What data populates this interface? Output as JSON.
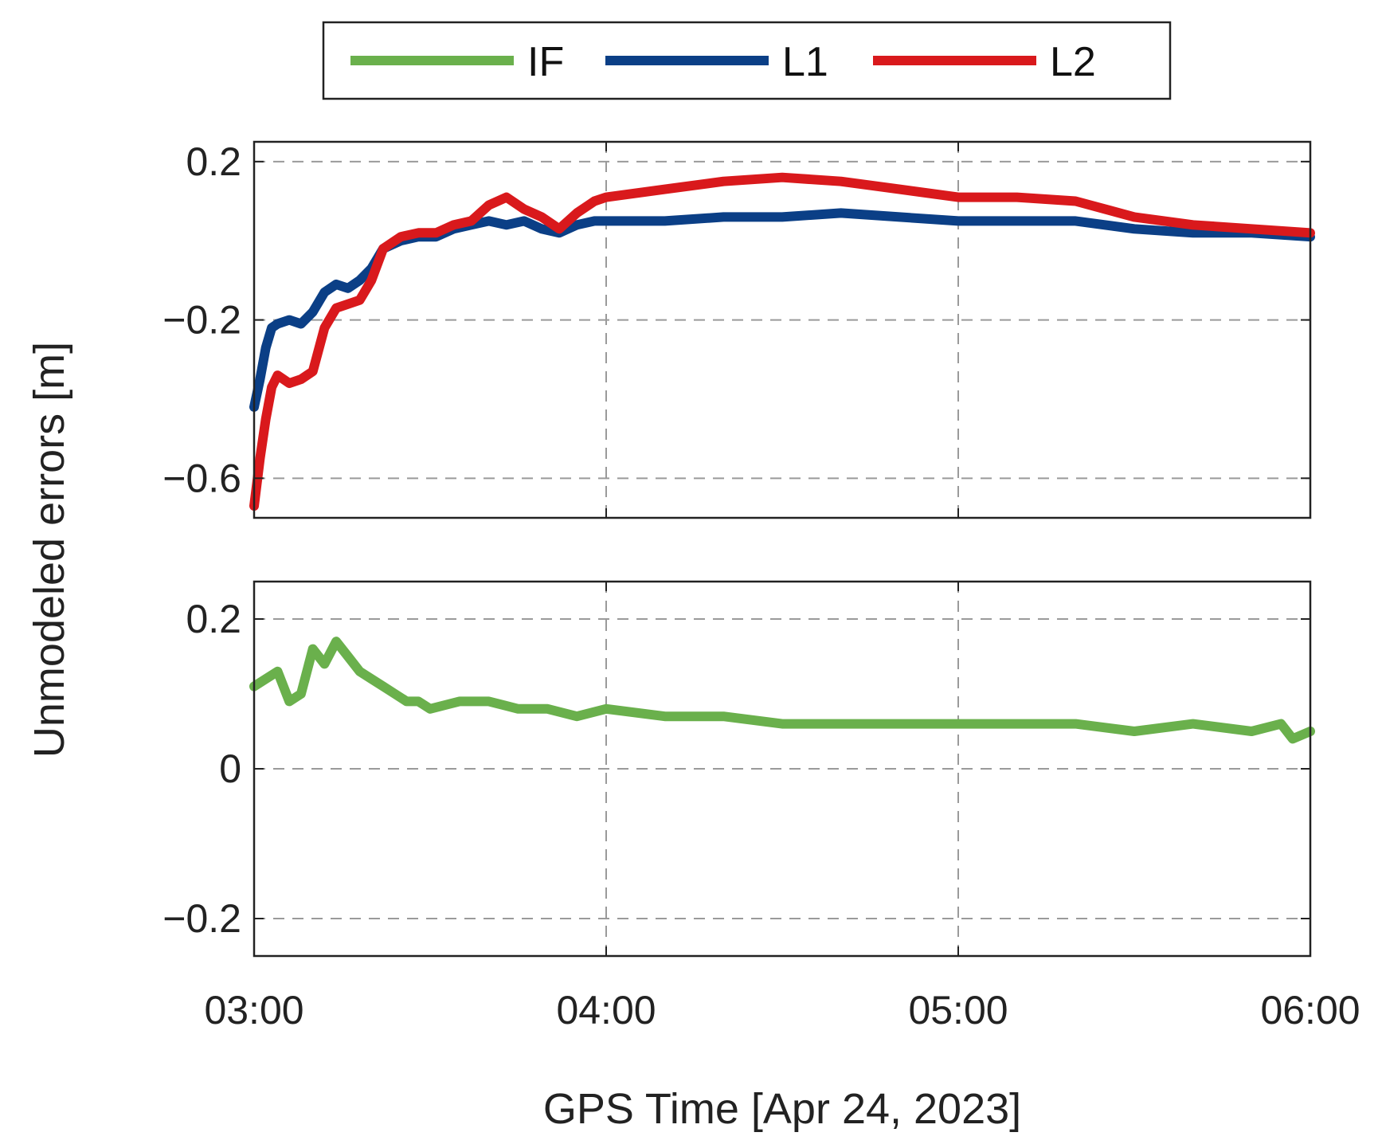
{
  "chart_data": [
    {
      "type": "line",
      "panel": "top",
      "xlabel": "",
      "ylabel": "",
      "xlim": [
        "03:00",
        "06:00"
      ],
      "ylim": [
        -0.7,
        0.25
      ],
      "yticks": [
        0.2,
        -0.2,
        -0.6
      ],
      "ytick_labels": [
        "0.2",
        "−0.2",
        "−0.6"
      ],
      "grid": true,
      "series": [
        {
          "name": "L1",
          "color": "#0b3f86",
          "x": [
            "03:00",
            "03:01",
            "03:02",
            "03:03",
            "03:04",
            "03:06",
            "03:08",
            "03:10",
            "03:12",
            "03:14",
            "03:16",
            "03:18",
            "03:20",
            "03:22",
            "03:25",
            "03:28",
            "03:31",
            "03:34",
            "03:37",
            "03:40",
            "03:43",
            "03:46",
            "03:49",
            "03:52",
            "03:55",
            "03:58",
            "04:00",
            "04:10",
            "04:20",
            "04:30",
            "04:40",
            "04:50",
            "05:00",
            "05:10",
            "05:20",
            "05:30",
            "05:40",
            "05:50",
            "06:00"
          ],
          "y": [
            -0.42,
            -0.35,
            -0.27,
            -0.22,
            -0.21,
            -0.2,
            -0.21,
            -0.18,
            -0.13,
            -0.11,
            -0.12,
            -0.1,
            -0.07,
            -0.02,
            0.0,
            0.01,
            0.01,
            0.03,
            0.04,
            0.05,
            0.04,
            0.05,
            0.03,
            0.02,
            0.04,
            0.05,
            0.05,
            0.05,
            0.06,
            0.06,
            0.07,
            0.06,
            0.05,
            0.05,
            0.05,
            0.03,
            0.02,
            0.02,
            0.01
          ]
        },
        {
          "name": "L2",
          "color": "#d9191c",
          "x": [
            "03:00",
            "03:01",
            "03:02",
            "03:03",
            "03:04",
            "03:06",
            "03:08",
            "03:10",
            "03:12",
            "03:14",
            "03:16",
            "03:18",
            "03:20",
            "03:22",
            "03:25",
            "03:28",
            "03:31",
            "03:34",
            "03:37",
            "03:40",
            "03:43",
            "03:46",
            "03:49",
            "03:52",
            "03:55",
            "03:58",
            "04:00",
            "04:10",
            "04:20",
            "04:30",
            "04:40",
            "04:50",
            "05:00",
            "05:10",
            "05:20",
            "05:30",
            "05:40",
            "05:50",
            "06:00"
          ],
          "y": [
            -0.67,
            -0.55,
            -0.45,
            -0.37,
            -0.34,
            -0.36,
            -0.35,
            -0.33,
            -0.22,
            -0.17,
            -0.16,
            -0.15,
            -0.1,
            -0.02,
            0.01,
            0.02,
            0.02,
            0.04,
            0.05,
            0.09,
            0.11,
            0.08,
            0.06,
            0.03,
            0.07,
            0.1,
            0.11,
            0.13,
            0.15,
            0.16,
            0.15,
            0.13,
            0.11,
            0.11,
            0.1,
            0.06,
            0.04,
            0.03,
            0.02
          ]
        }
      ]
    },
    {
      "type": "line",
      "panel": "bottom",
      "xlabel": "GPS Time [Apr 24, 2023]",
      "ylabel": "Unmodeled errors  [m]",
      "xlim": [
        "03:00",
        "06:00"
      ],
      "ylim": [
        -0.25,
        0.25
      ],
      "xticks": [
        "03:00",
        "04:00",
        "05:00",
        "06:00"
      ],
      "yticks": [
        0.2,
        0,
        -0.2
      ],
      "ytick_labels": [
        "0.2",
        "0",
        "−0.2"
      ],
      "grid": true,
      "series": [
        {
          "name": "IF",
          "color": "#6ab04c",
          "x": [
            "03:00",
            "03:02",
            "03:04",
            "03:06",
            "03:08",
            "03:10",
            "03:12",
            "03:14",
            "03:16",
            "03:18",
            "03:20",
            "03:22",
            "03:24",
            "03:26",
            "03:28",
            "03:30",
            "03:35",
            "03:40",
            "03:45",
            "03:50",
            "03:55",
            "04:00",
            "04:10",
            "04:20",
            "04:30",
            "04:40",
            "04:50",
            "05:00",
            "05:10",
            "05:20",
            "05:30",
            "05:40",
            "05:50",
            "05:55",
            "05:57",
            "06:00"
          ],
          "y": [
            0.11,
            0.12,
            0.13,
            0.09,
            0.1,
            0.16,
            0.14,
            0.17,
            0.15,
            0.13,
            0.12,
            0.11,
            0.1,
            0.09,
            0.09,
            0.08,
            0.09,
            0.09,
            0.08,
            0.08,
            0.07,
            0.08,
            0.07,
            0.07,
            0.06,
            0.06,
            0.06,
            0.06,
            0.06,
            0.06,
            0.05,
            0.06,
            0.05,
            0.06,
            0.04,
            0.05
          ]
        }
      ]
    }
  ],
  "legend": {
    "placement": "top",
    "entries": [
      {
        "label": "IF",
        "color": "#6ab04c"
      },
      {
        "label": "L1",
        "color": "#0b3f86"
      },
      {
        "label": "L2",
        "color": "#d9191c"
      }
    ]
  }
}
